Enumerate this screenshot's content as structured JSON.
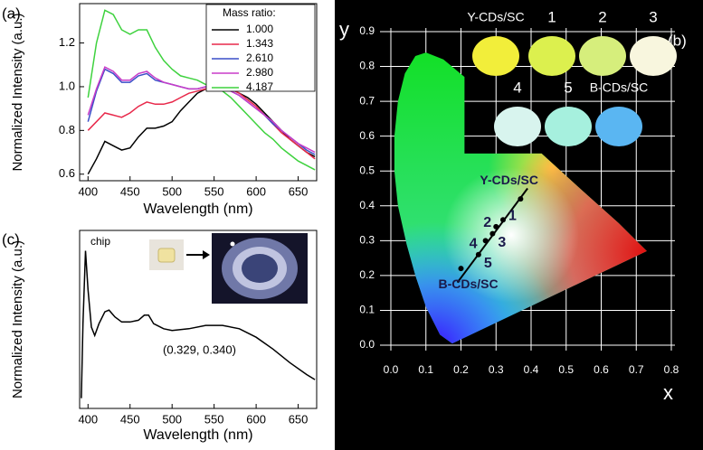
{
  "chart_data": [
    {
      "type": "line",
      "panel_label": "(a)",
      "x_label": "Wavelength (nm)",
      "y_label": "Normalized Intensity (a.u.)",
      "legend_title": "Mass ratio:",
      "x": [
        400,
        410,
        420,
        430,
        440,
        450,
        460,
        470,
        480,
        490,
        500,
        510,
        520,
        530,
        540,
        550,
        560,
        570,
        580,
        590,
        600,
        610,
        620,
        630,
        640,
        650,
        660,
        670
      ],
      "series": [
        {
          "name": "1.000",
          "color": "#000000",
          "values": [
            0.6,
            0.67,
            0.75,
            0.73,
            0.71,
            0.72,
            0.77,
            0.81,
            0.81,
            0.82,
            0.84,
            0.89,
            0.93,
            0.97,
            0.99,
            1.0,
            1.0,
            0.99,
            0.97,
            0.95,
            0.92,
            0.88,
            0.84,
            0.8,
            0.76,
            0.73,
            0.7,
            0.68
          ]
        },
        {
          "name": "1.343",
          "color": "#e8284a",
          "values": [
            0.8,
            0.84,
            0.88,
            0.87,
            0.86,
            0.88,
            0.91,
            0.93,
            0.92,
            0.92,
            0.93,
            0.95,
            0.97,
            0.98,
            0.99,
            1.0,
            1.0,
            0.99,
            0.97,
            0.94,
            0.91,
            0.87,
            0.83,
            0.79,
            0.76,
            0.73,
            0.7,
            0.67
          ]
        },
        {
          "name": "2.610",
          "color": "#3a4ec8",
          "values": [
            0.84,
            0.98,
            1.08,
            1.06,
            1.02,
            1.02,
            1.05,
            1.06,
            1.03,
            1.02,
            1.01,
            1.0,
            0.99,
            0.99,
            1.0,
            1.0,
            0.99,
            0.98,
            0.96,
            0.93,
            0.9,
            0.87,
            0.83,
            0.8,
            0.77,
            0.74,
            0.71,
            0.69
          ]
        },
        {
          "name": "2.980",
          "color": "#c83cc8",
          "values": [
            0.87,
            0.99,
            1.09,
            1.07,
            1.03,
            1.03,
            1.06,
            1.07,
            1.04,
            1.02,
            1.01,
            1.0,
            0.99,
            0.99,
            1.0,
            1.0,
            0.99,
            0.98,
            0.96,
            0.93,
            0.9,
            0.87,
            0.84,
            0.8,
            0.77,
            0.74,
            0.72,
            0.7
          ]
        },
        {
          "name": "4.187",
          "color": "#3ed23e",
          "values": [
            0.95,
            1.2,
            1.35,
            1.33,
            1.26,
            1.24,
            1.26,
            1.26,
            1.18,
            1.12,
            1.08,
            1.05,
            1.04,
            1.03,
            1.01,
            1.0,
            0.98,
            0.95,
            0.91,
            0.87,
            0.83,
            0.79,
            0.76,
            0.72,
            0.69,
            0.66,
            0.64,
            0.62
          ]
        }
      ],
      "xlim": [
        390,
        672
      ],
      "xticks": [
        400,
        450,
        500,
        550,
        600,
        650
      ],
      "ylim": [
        0.57,
        1.38
      ],
      "yticks": [
        0.6,
        0.8,
        {
          "value": 1.0,
          "label": "1.0"
        },
        1.2
      ]
    },
    {
      "type": "line",
      "panel_label": "(c)",
      "x_label": "Wavelength (nm)",
      "y_label": "Normalized Intensity (a.u.)",
      "annotations": [
        "chip",
        "(0.329, 0.340)"
      ],
      "x": [
        392,
        394,
        397,
        400,
        404,
        408,
        413,
        420,
        425,
        432,
        440,
        450,
        460,
        467,
        472,
        478,
        490,
        500,
        520,
        540,
        560,
        580,
        600,
        620,
        640,
        660,
        670
      ],
      "values": [
        0.06,
        0.5,
        0.93,
        0.7,
        0.48,
        0.43,
        0.5,
        0.57,
        0.58,
        0.54,
        0.51,
        0.51,
        0.52,
        0.55,
        0.55,
        0.5,
        0.47,
        0.46,
        0.47,
        0.49,
        0.49,
        0.47,
        0.42,
        0.35,
        0.27,
        0.2,
        0.17
      ],
      "color": "#000000",
      "xlim": [
        390,
        672
      ],
      "xticks": [
        400,
        450,
        500,
        550,
        600,
        650
      ],
      "ylim": [
        0,
        1.05
      ]
    },
    {
      "type": "scatter",
      "panel_label": "(b)",
      "x_label": "x",
      "y_label": "y",
      "point_labels": [
        "Y-CDs/SC",
        "1",
        "2",
        "3",
        "4",
        "5",
        "B-CDs/SC"
      ],
      "x": [
        0.37,
        0.32,
        0.3,
        0.29,
        0.27,
        0.25,
        0.2
      ],
      "values": [
        0.42,
        0.36,
        0.34,
        0.32,
        0.3,
        0.26,
        0.22
      ],
      "color": "#000000",
      "swatches": [
        {
          "label": "Y-CDs/SC",
          "color": "#f2ee3a"
        },
        {
          "label": "1",
          "color": "#dcf04e"
        },
        {
          "label": "2",
          "color": "#d6ee7c"
        },
        {
          "label": "3",
          "color": "#f8f6de"
        },
        {
          "label": "4",
          "color": "#d8f4ee"
        },
        {
          "label": "5",
          "color": "#a6f0de"
        },
        {
          "label": "B-CDs/SC",
          "color": "#5ab6f2"
        }
      ],
      "xlim": [
        0,
        0.8
      ],
      "xticks": [
        {
          "value": 0,
          "label": "0.0"
        },
        0.1,
        0.2,
        0.3,
        0.4,
        0.5,
        0.6,
        0.7,
        0.8
      ],
      "ylim": [
        0,
        0.9
      ],
      "yticks": [
        {
          "value": 0,
          "label": "0.0"
        },
        0.1,
        0.2,
        0.3,
        0.4,
        0.5,
        0.6,
        0.7,
        0.8,
        0.9
      ],
      "grid": true
    }
  ]
}
